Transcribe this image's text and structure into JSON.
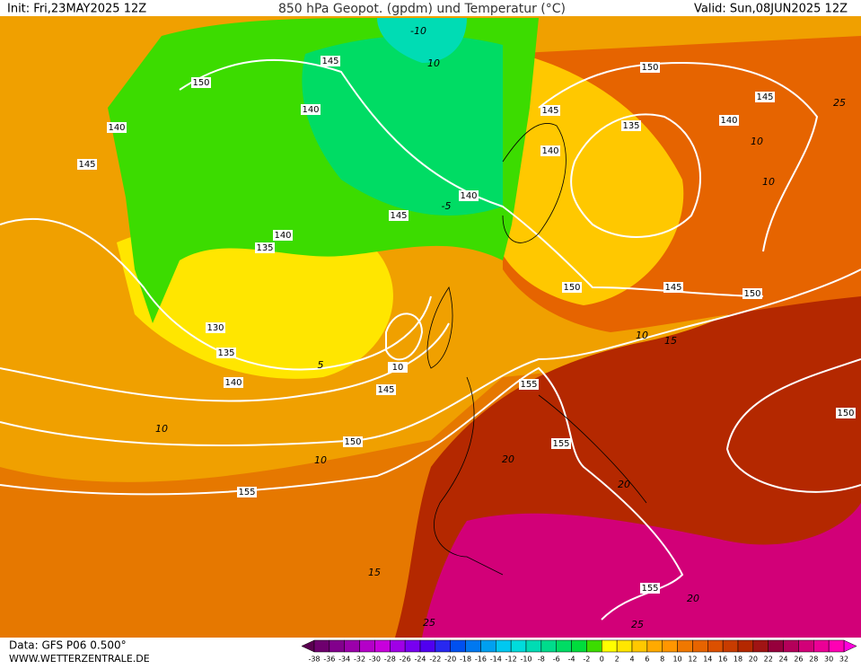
{
  "header": {
    "init": "Init: Fri,23MAY2025 12Z",
    "title": "850 hPa Geopot. (gpdm) und Temperatur (°C)",
    "valid": "Valid: Sun,08JUN2025 12Z"
  },
  "footer": {
    "data": "Data: GFS P06 0.500°",
    "website": "WWW.WETTERZENTRALE.DE"
  },
  "color_scale": {
    "ticks": [
      -38,
      -36,
      -34,
      -32,
      -30,
      -28,
      -26,
      -24,
      -22,
      -20,
      -18,
      -16,
      -14,
      -12,
      -10,
      -8,
      -6,
      -4,
      -2,
      0,
      2,
      4,
      6,
      8,
      10,
      12,
      14,
      16,
      18,
      20,
      22,
      24,
      26,
      28,
      30,
      32
    ],
    "colors": [
      "#6e006e",
      "#82008c",
      "#9b00aa",
      "#b400c8",
      "#c800dc",
      "#a000e6",
      "#7800f0",
      "#5000f0",
      "#2828f0",
      "#0050f0",
      "#0078f0",
      "#00a0f0",
      "#00c8f0",
      "#00dcdc",
      "#00dcb4",
      "#00dc8c",
      "#00dc64",
      "#00dc3c",
      "#3cdc00",
      "#ffff00",
      "#ffe600",
      "#ffc800",
      "#ffaa00",
      "#ff9600",
      "#f07800",
      "#e66400",
      "#dc5000",
      "#c83c00",
      "#b42800",
      "#a01414",
      "#96003c",
      "#b4005a",
      "#d20078",
      "#eb0096",
      "#ff00b4"
    ],
    "low_color": "#5a0050",
    "high_color": "#ff00dc"
  },
  "map": {
    "geopotential_labels": [
      150,
      145,
      140,
      145,
      140,
      140,
      145,
      140,
      135,
      130,
      135,
      140,
      10,
      145,
      150,
      155,
      155,
      155,
      150,
      145,
      150,
      150,
      155,
      150,
      145,
      140,
      135,
      145,
      140
    ],
    "temperature_labels": [
      10,
      -10,
      -5,
      5,
      10,
      10,
      15,
      20,
      25,
      20,
      20,
      25,
      10,
      10,
      15,
      10,
      25
    ]
  }
}
